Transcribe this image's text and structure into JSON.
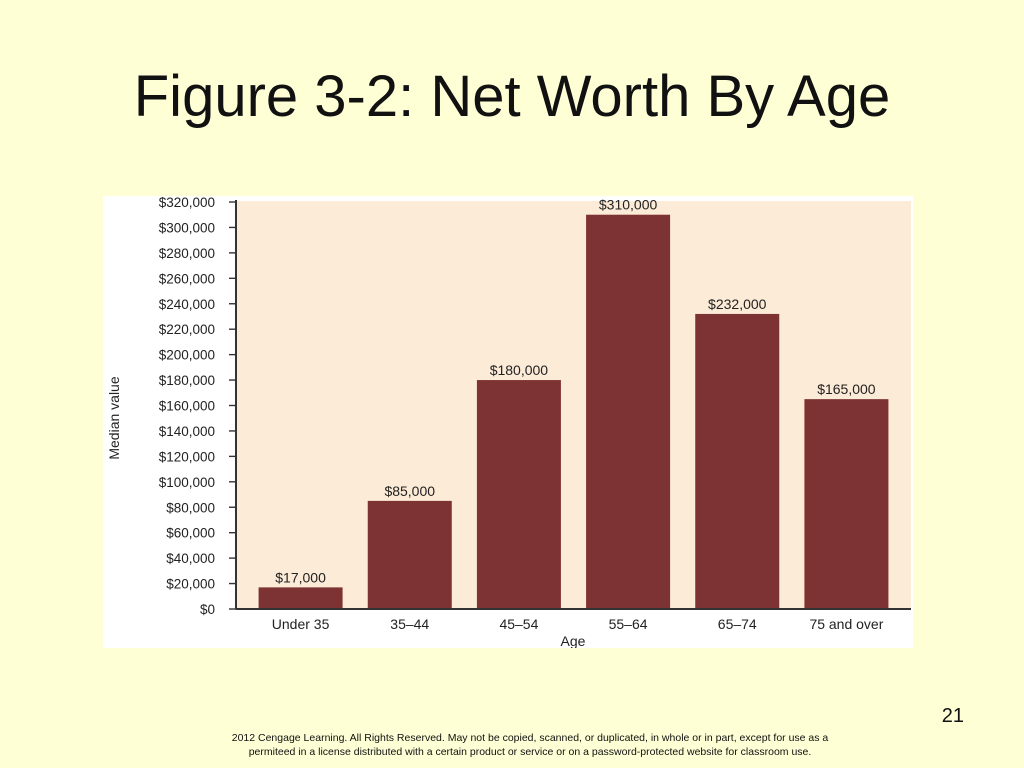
{
  "slide": {
    "title": "Figure 3-2: Net Worth By Age",
    "page_number": "21",
    "footer_line1": "2012 Cengage Learning. All Rights Reserved.  May not be copied, scanned, or duplicated, in whole or in part, except for use as a",
    "footer_line2": "permiteed in a license distributed with a certain product or service or on a password-protected website for classroom use."
  },
  "colors": {
    "background": "#ffffd6",
    "plot_area": "#fcebd6",
    "bar": "#7d3333"
  },
  "chart_data": {
    "type": "bar",
    "title": "",
    "xlabel": "Age",
    "ylabel": "Median value",
    "categories": [
      "Under 35",
      "35–44",
      "45–54",
      "55–64",
      "65–74",
      "75 and over"
    ],
    "values": [
      17000,
      85000,
      180000,
      310000,
      232000,
      165000
    ],
    "value_labels": [
      "$17,000",
      "$85,000",
      "$180,000",
      "$310,000",
      "$232,000",
      "$165,000"
    ],
    "ylim": [
      0,
      320000
    ],
    "yticks": [
      0,
      20000,
      40000,
      60000,
      80000,
      100000,
      120000,
      140000,
      160000,
      180000,
      200000,
      220000,
      240000,
      260000,
      280000,
      300000,
      320000
    ],
    "ytick_labels": [
      "$0",
      "$20,000",
      "$40,000",
      "$60,000",
      "$80,000",
      "$100,000",
      "$120,000",
      "$140,000",
      "$160,000",
      "$180,000",
      "$200,000",
      "$220,000",
      "$240,000",
      "$260,000",
      "$280,000",
      "$300,000",
      "$320,000"
    ],
    "grid": false,
    "legend": "none"
  }
}
